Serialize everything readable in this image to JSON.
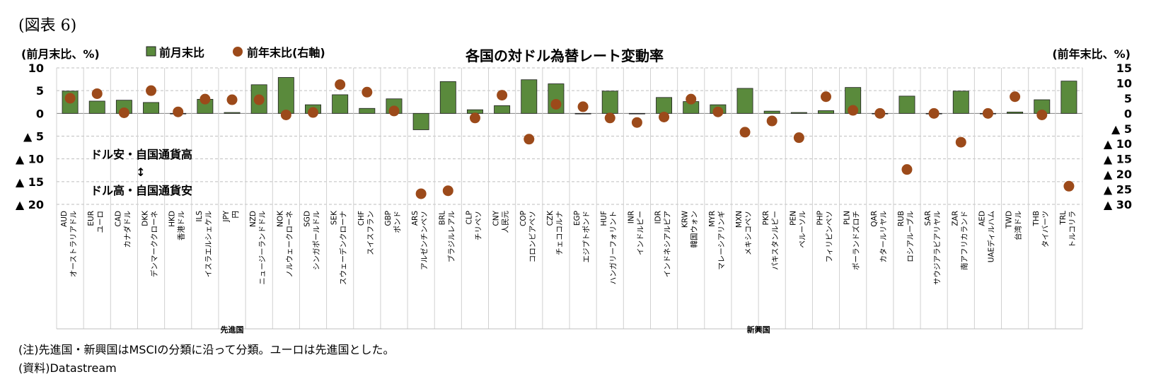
{
  "figure_label": "(図表 6)",
  "notes": {
    "note": "(注)先進国・新興国はMSCIの分類に沿って分類。ユーロは先進国とした。",
    "source": "(資料)Datastream"
  },
  "chart_data": {
    "type": "bar",
    "title": "各国の対ドル為替レート変動率",
    "left_axis_unit": "(前月末比、%)",
    "right_axis_unit": "(前年末比、%)",
    "left_ylim": [
      -20,
      10
    ],
    "right_ylim": [
      -30,
      15
    ],
    "left_ticks": [
      {
        "value": 10,
        "label": "10"
      },
      {
        "value": 5,
        "label": "5"
      },
      {
        "value": 0,
        "label": "0"
      },
      {
        "value": -5,
        "label": "▲ 5"
      },
      {
        "value": -10,
        "label": "▲ 10"
      },
      {
        "value": -15,
        "label": "▲ 15"
      },
      {
        "value": -20,
        "label": "▲ 20"
      }
    ],
    "right_ticks": [
      {
        "value": 15,
        "label": "15"
      },
      {
        "value": 10,
        "label": "10"
      },
      {
        "value": 5,
        "label": "5"
      },
      {
        "value": 0,
        "label": "0"
      },
      {
        "value": -5,
        "label": "▲ 5"
      },
      {
        "value": -10,
        "label": "▲ 10"
      },
      {
        "value": -15,
        "label": "▲ 15"
      },
      {
        "value": -20,
        "label": "▲ 20"
      },
      {
        "value": -25,
        "label": "▲ 25"
      },
      {
        "value": -30,
        "label": "▲ 30"
      }
    ],
    "grid": true,
    "legend": {
      "position": "top-left",
      "bar_label": "前月末比",
      "dot_label": "前年末比(右軸)"
    },
    "annotations": {
      "upper": "ドル安・自国通貨高",
      "arrow": "↕",
      "lower": "ドル高・自国通貨安"
    },
    "colors": {
      "bar": "#5a8a3c",
      "bar_edge": "#1f1f1f",
      "dot": "#9c4a1a",
      "grid": "#bfbfbf"
    },
    "groups": [
      {
        "label": "先進国",
        "start": 0,
        "end": 12
      },
      {
        "label": "新興国",
        "start": 13,
        "end": 38
      }
    ],
    "categories": [
      {
        "code": "AUD",
        "name": "オーストラリアドル"
      },
      {
        "code": "EUR",
        "name": "ユーロ"
      },
      {
        "code": "CAD",
        "name": "カナダドル"
      },
      {
        "code": "DKK",
        "name": "デンマーククローネ"
      },
      {
        "code": "HKD",
        "name": "香港ドル"
      },
      {
        "code": "ILS",
        "name": "イスラエルシェケル"
      },
      {
        "code": "JPY",
        "name": "円"
      },
      {
        "code": "NZD",
        "name": "ニュージーランドドル"
      },
      {
        "code": "NOK",
        "name": "ノルウェークローネ"
      },
      {
        "code": "SGD",
        "name": "シンガポールドル"
      },
      {
        "code": "SEK",
        "name": "スウェーデンクローナ"
      },
      {
        "code": "CHF",
        "name": "スイスフラン"
      },
      {
        "code": "GBP",
        "name": "ポンド"
      },
      {
        "code": "ARS",
        "name": "アルゼンチンペソ"
      },
      {
        "code": "BRL",
        "name": "ブラジルレアル"
      },
      {
        "code": "CLP",
        "name": "チリペソ"
      },
      {
        "code": "CNY",
        "name": "人民元"
      },
      {
        "code": "COP",
        "name": "コロンビアペソ"
      },
      {
        "code": "CZK",
        "name": "チェココルナ"
      },
      {
        "code": "EGP",
        "name": "エジプトポンド"
      },
      {
        "code": "HUF",
        "name": "ハンガリーフォリント"
      },
      {
        "code": "INR",
        "name": "インドルピー"
      },
      {
        "code": "IDR",
        "name": "インドネシアルピア"
      },
      {
        "code": "KRW",
        "name": "韓国ウォン"
      },
      {
        "code": "MYR",
        "name": "マレーシアリンギ"
      },
      {
        "code": "MXN",
        "name": "メキシコペソ"
      },
      {
        "code": "PKR",
        "name": "パキスタンルピー"
      },
      {
        "code": "PEN",
        "name": "ペルーソル"
      },
      {
        "code": "PHP",
        "name": "フィリピンペソ"
      },
      {
        "code": "PLN",
        "name": "ポーランドズロチ"
      },
      {
        "code": "QAR",
        "name": "カタールリヤル"
      },
      {
        "code": "RUB",
        "name": "ロシアルーブル"
      },
      {
        "code": "SAR",
        "name": "サウジアラビアリヤル"
      },
      {
        "code": "ZAR",
        "name": "南アフリカランド"
      },
      {
        "code": "AED",
        "name": "UAEディルハム"
      },
      {
        "code": "TWD",
        "name": "台湾ドル"
      },
      {
        "code": "THB",
        "name": "タイバーツ"
      },
      {
        "code": "TRL",
        "name": "トルコリラ"
      }
    ],
    "series": [
      {
        "name": "前月末比",
        "kind": "bar",
        "axis": "left",
        "values": [
          4.9,
          2.7,
          2.9,
          2.4,
          0.0,
          3.1,
          0.2,
          6.3,
          7.9,
          1.9,
          4.1,
          1.1,
          3.2,
          -3.6,
          7.0,
          0.8,
          1.7,
          7.4,
          6.5,
          0.0,
          4.9,
          0.0,
          3.5,
          2.6,
          1.9,
          5.5,
          0.5,
          0.2,
          0.6,
          5.7,
          0.0,
          3.8,
          -0.1,
          4.9,
          0.0,
          0.3,
          3.0,
          7.1
        ]
      },
      {
        "name": "前年末比(右軸)",
        "kind": "dot",
        "axis": "right",
        "values": [
          5.0,
          6.5,
          0.2,
          7.5,
          0.5,
          4.7,
          4.5,
          4.5,
          -0.5,
          0.3,
          9.5,
          7.0,
          0.8,
          -26.5,
          -25.5,
          -1.5,
          6.0,
          -8.5,
          3.0,
          2.2,
          -1.5,
          -3.0,
          -1.2,
          4.7,
          0.5,
          -6.2,
          -2.5,
          -8.0,
          5.5,
          1.0,
          0.0,
          -18.5,
          0.0,
          -9.5,
          0.0,
          5.5,
          -0.5,
          -24.0
        ]
      }
    ]
  }
}
